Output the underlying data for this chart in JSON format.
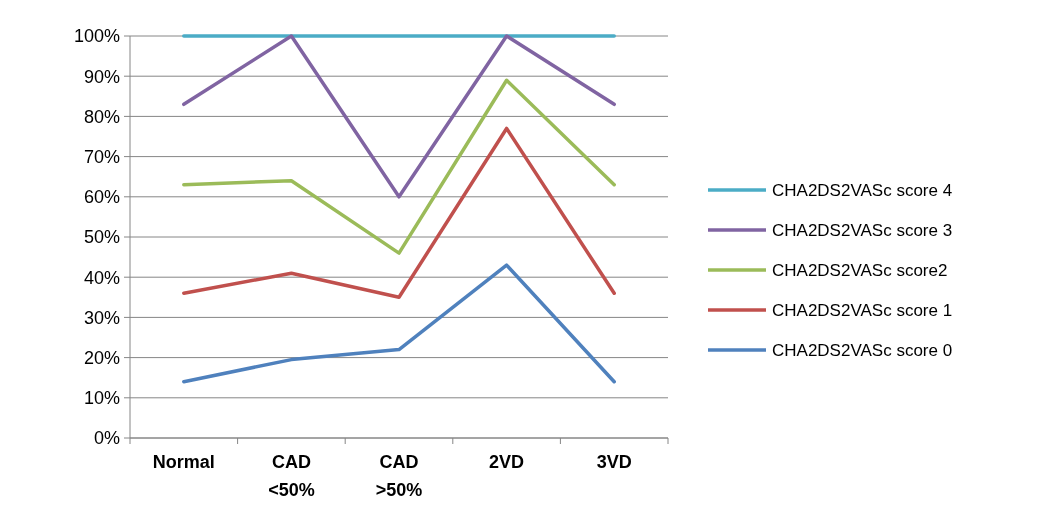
{
  "chart_data": {
    "type": "line",
    "categories": [
      "Normal",
      "CAD <50%",
      "CAD >50%",
      "2VD",
      "3VD"
    ],
    "series": [
      {
        "name": "CHA2DS2VASc score 4",
        "color": "#4bacc6",
        "values": [
          100,
          100,
          100,
          100,
          100
        ]
      },
      {
        "name": "CHA2DS2VASc score 3",
        "color": "#8064a2",
        "values": [
          83,
          100,
          60,
          100,
          83
        ]
      },
      {
        "name": "CHA2DS2VASc score2",
        "color": "#9bbb59",
        "values": [
          63,
          64,
          46,
          89,
          63
        ]
      },
      {
        "name": "CHA2DS2VASc score 1",
        "color": "#c0504d",
        "values": [
          36,
          41,
          35,
          77,
          36
        ]
      },
      {
        "name": "CHA2DS2VASc score 0",
        "color": "#4f81bd",
        "values": [
          14,
          19.5,
          22,
          43,
          14
        ]
      }
    ],
    "ylim": [
      0,
      100
    ],
    "yticks": [
      {
        "value": 0,
        "label": "0%"
      },
      {
        "value": 10,
        "label": "10%"
      },
      {
        "value": 20,
        "label": "20%"
      },
      {
        "value": 30,
        "label": "30%"
      },
      {
        "value": 40,
        "label": "40%"
      },
      {
        "value": 50,
        "label": "50%"
      },
      {
        "value": 60,
        "label": "60%"
      },
      {
        "value": 70,
        "label": "70%"
      },
      {
        "value": 80,
        "label": "80%"
      },
      {
        "value": 90,
        "label": "90%"
      },
      {
        "value": 100,
        "label": "100%"
      }
    ],
    "grid": "y",
    "legend": "right",
    "marker": "none",
    "line_style": "solid"
  }
}
